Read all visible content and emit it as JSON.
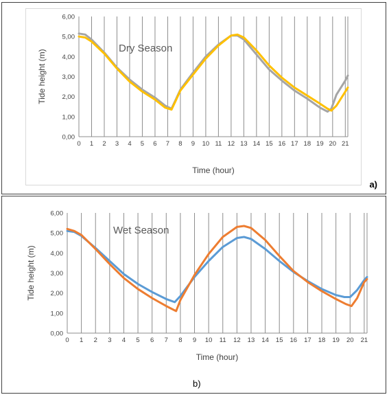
{
  "chart_data": [
    {
      "type": "line",
      "panel_label": "a)",
      "title": "Dry Season",
      "xlabel": "Time (hour)",
      "ylabel": "Tide height (m)",
      "xlim": [
        0,
        21.2
      ],
      "ylim": [
        0,
        6
      ],
      "x_ticks": [
        0,
        1,
        2,
        3,
        4,
        5,
        6,
        7,
        8,
        9,
        10,
        11,
        12,
        13,
        14,
        15,
        16,
        17,
        18,
        19,
        20,
        21
      ],
      "y_ticks": [
        "0,00",
        "1,00",
        "2,00",
        "3,00",
        "4,00",
        "5,00",
        "6,00"
      ],
      "grid": "vertical",
      "legend": "none",
      "series": [
        {
          "color": "#a5a5a5",
          "x": [
            0,
            0.5,
            1,
            2,
            3,
            4,
            5,
            6,
            6.8,
            7.3,
            7.6,
            8,
            9,
            10,
            11,
            12,
            12.5,
            13,
            14,
            15,
            16,
            17,
            18,
            19,
            19.6,
            19.9,
            20.3,
            21,
            21.2
          ],
          "y": [
            5.15,
            5.1,
            4.85,
            4.2,
            3.45,
            2.85,
            2.35,
            1.95,
            1.55,
            1.4,
            1.8,
            2.35,
            3.2,
            4,
            4.6,
            5.05,
            5.05,
            4.85,
            4.1,
            3.35,
            2.8,
            2.3,
            1.9,
            1.45,
            1.25,
            1.4,
            2.1,
            2.8,
            3.05
          ]
        },
        {
          "color": "#ffc000",
          "x": [
            0,
            0.5,
            1,
            2,
            3,
            4,
            5,
            6,
            6.8,
            7.3,
            7.6,
            8,
            9,
            10,
            11,
            12,
            12.5,
            13,
            14,
            15,
            16,
            17,
            18,
            19,
            19.6,
            19.9,
            20.3,
            21,
            21.2
          ],
          "y": [
            5,
            4.95,
            4.75,
            4.15,
            3.4,
            2.75,
            2.25,
            1.85,
            1.45,
            1.35,
            1.75,
            2.3,
            3.1,
            3.9,
            4.55,
            5.05,
            5.1,
            4.95,
            4.3,
            3.55,
            2.95,
            2.45,
            2.05,
            1.65,
            1.4,
            1.3,
            1.55,
            2.25,
            2.45
          ]
        }
      ]
    },
    {
      "type": "line",
      "panel_label": "b)",
      "title": "Wet Season",
      "xlabel": "Time (hour)",
      "ylabel": "Tide height (m)",
      "xlim": [
        0,
        21.2
      ],
      "ylim": [
        0,
        6
      ],
      "x_ticks": [
        0,
        1,
        2,
        3,
        4,
        5,
        6,
        7,
        8,
        9,
        10,
        11,
        12,
        13,
        14,
        15,
        16,
        17,
        18,
        19,
        20,
        21
      ],
      "y_ticks": [
        "0,00",
        "1,00",
        "2,00",
        "3,00",
        "4,00",
        "5,00",
        "6,00"
      ],
      "grid": "vertical",
      "legend": "none",
      "series": [
        {
          "color": "#5b9bd5",
          "x": [
            0,
            0.5,
            1,
            2,
            3,
            4,
            5,
            6,
            7,
            7.6,
            8,
            9,
            10,
            11,
            12,
            12.5,
            13,
            14,
            15,
            16,
            17,
            18,
            19,
            19.6,
            20,
            20.5,
            21,
            21.2
          ],
          "y": [
            5.1,
            5.05,
            4.85,
            4.25,
            3.6,
            2.95,
            2.45,
            2.05,
            1.7,
            1.55,
            1.85,
            2.8,
            3.6,
            4.3,
            4.75,
            4.8,
            4.7,
            4.2,
            3.6,
            3.05,
            2.6,
            2.2,
            1.9,
            1.8,
            1.8,
            2.15,
            2.65,
            2.8
          ]
        },
        {
          "color": "#ed7d31",
          "x": [
            0,
            0.5,
            1,
            2,
            3,
            4,
            5,
            6,
            7,
            7.7,
            8,
            9,
            10,
            11,
            12,
            12.5,
            13,
            14,
            15,
            16,
            17,
            18,
            19,
            19.7,
            20.1,
            20.5,
            21,
            21.2
          ],
          "y": [
            5.2,
            5.1,
            4.9,
            4.2,
            3.45,
            2.75,
            2.2,
            1.75,
            1.35,
            1.1,
            1.65,
            2.9,
            3.95,
            4.8,
            5.3,
            5.35,
            5.25,
            4.65,
            3.85,
            3.1,
            2.55,
            2.1,
            1.7,
            1.45,
            1.35,
            1.75,
            2.55,
            2.7
          ]
        }
      ]
    }
  ]
}
